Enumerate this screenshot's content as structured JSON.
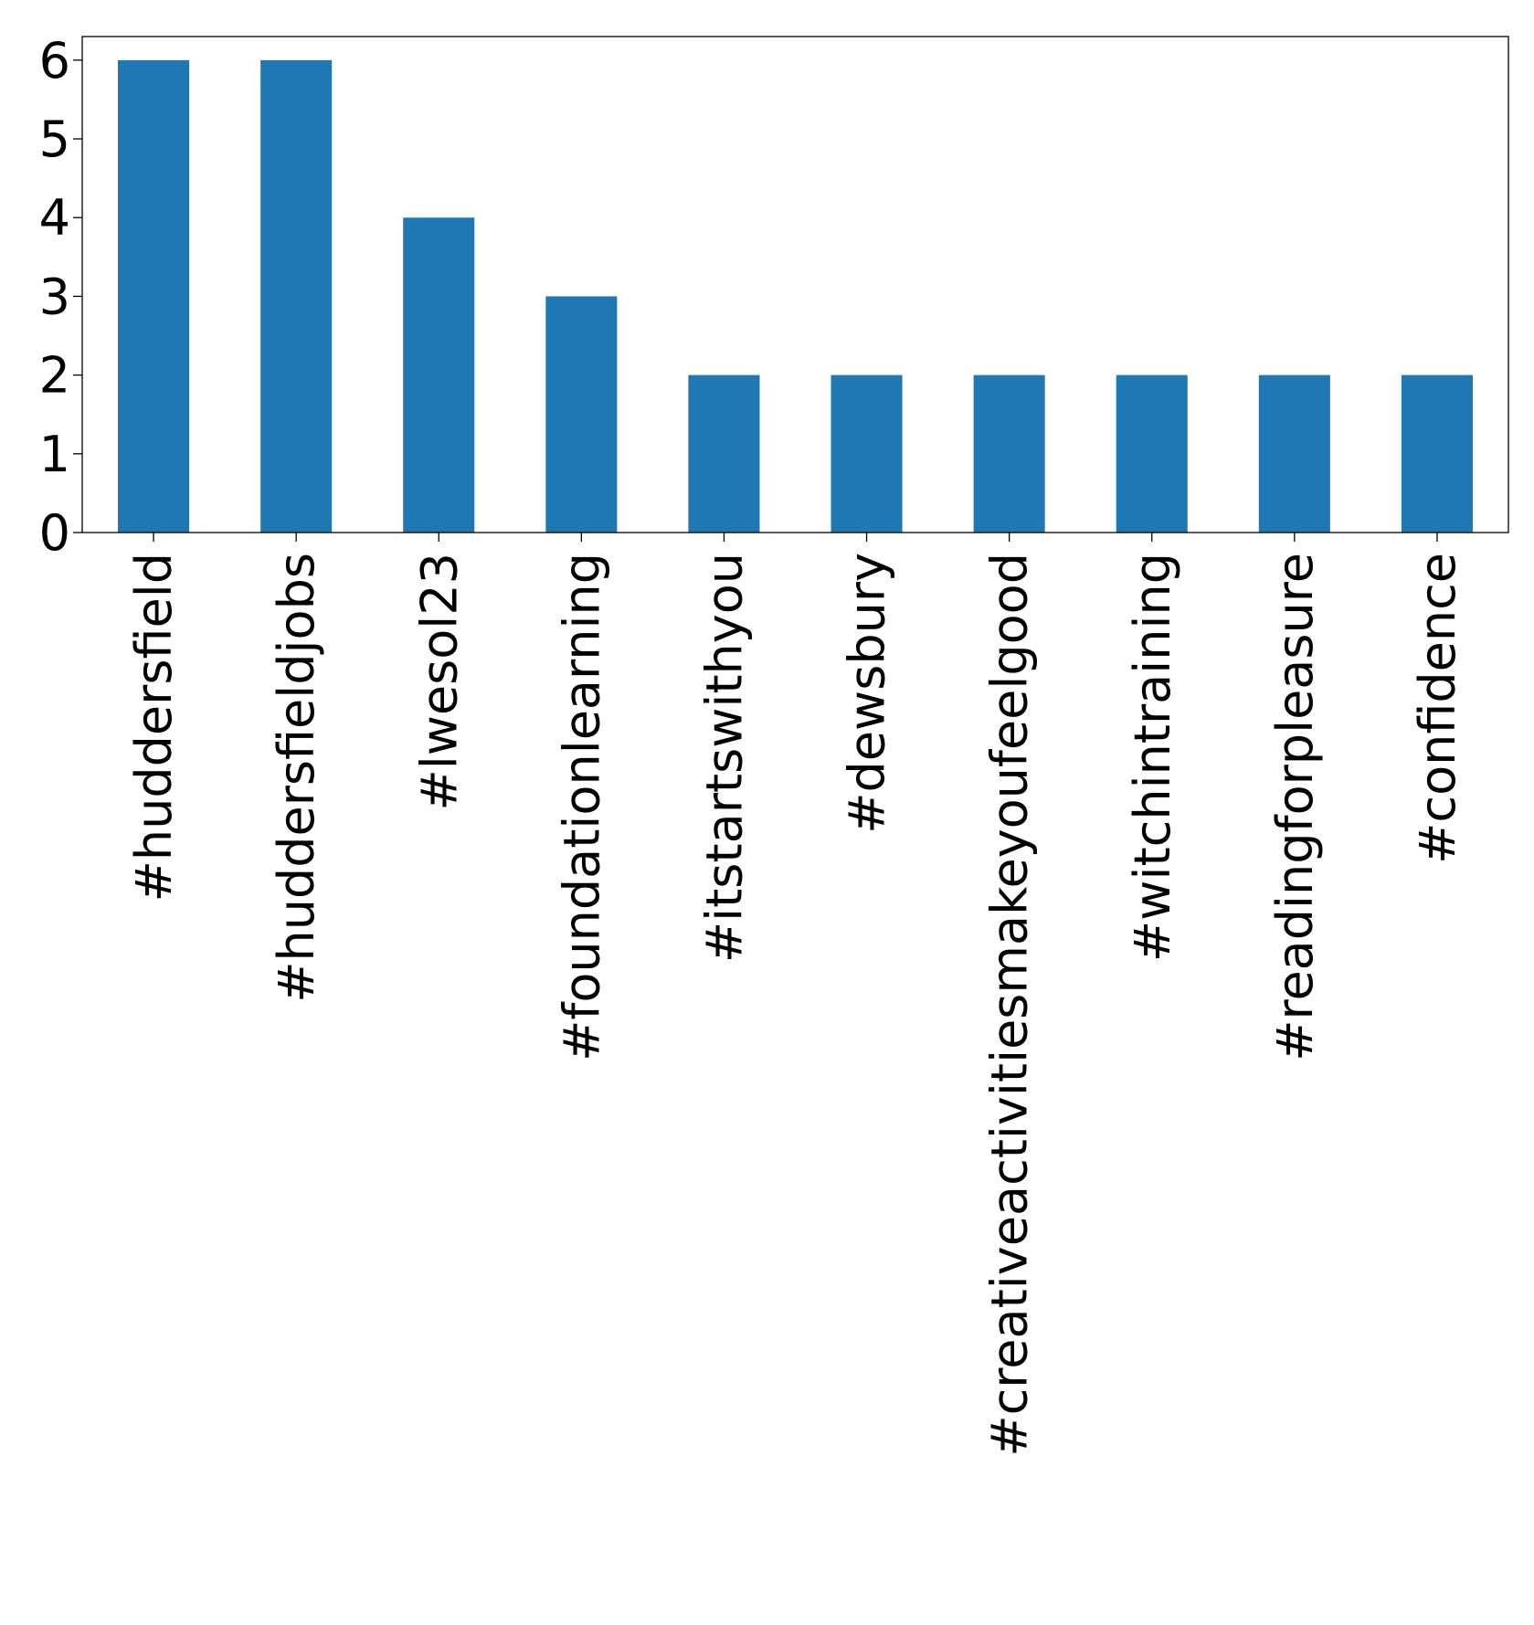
{
  "chart_data": {
    "type": "bar",
    "title": "",
    "xlabel": "",
    "ylabel": "",
    "categories": [
      "#huddersfield",
      "#huddersfieldjobs",
      "#lwesol23",
      "#foundationlearning",
      "#itstartswithyou",
      "#dewsbury",
      "#creativeactivitiesmakeyoufeelgood",
      "#witchintraining",
      "#readingforpleasure",
      "#confidence"
    ],
    "values": [
      6,
      6,
      4,
      3,
      2,
      2,
      2,
      2,
      2,
      2
    ],
    "ylim": [
      0,
      6.3
    ],
    "yticks": [
      0,
      1,
      2,
      3,
      4,
      5,
      6
    ],
    "bar_color": "#1f77b4",
    "grid": false,
    "legend": "none"
  }
}
